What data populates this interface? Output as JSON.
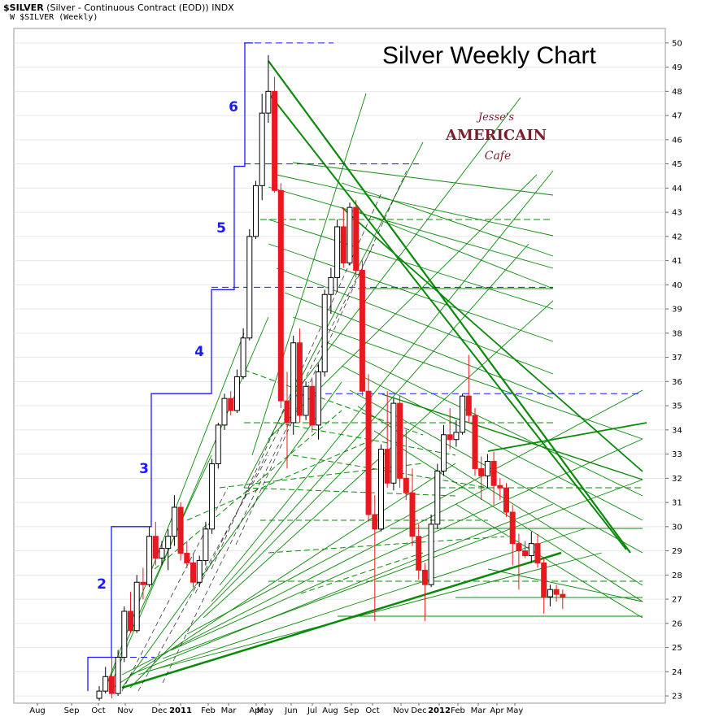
{
  "header": {
    "symbol": "$SILVER",
    "description": "(Silver - Continuous Contract (EOD))",
    "exchange": "INDX",
    "legend_icon": "W",
    "legend_label": "$SILVER (Weekly)"
  },
  "chart_data": {
    "type": "candlestick",
    "title": "Silver Weekly Chart",
    "logo_text": [
      "Jesse's",
      "AMERICAIN",
      "Cafe"
    ],
    "ylim": [
      22.7,
      50.6
    ],
    "y_ticks": [
      23,
      24,
      25,
      26,
      27,
      28,
      29,
      30,
      31,
      32,
      33,
      34,
      35,
      36,
      37,
      38,
      39,
      40,
      41,
      42,
      43,
      44,
      45,
      46,
      47,
      48,
      49,
      50
    ],
    "x_labels": [
      "Aug",
      "Sep",
      "Oct",
      "Nov",
      "Dec",
      "2011",
      "Feb",
      "Mar",
      "Apr",
      "May",
      "Jun",
      "Jul",
      "Aug",
      "Sep",
      "Oct",
      "Nov",
      "Dec",
      "2012",
      "Feb",
      "Mar",
      "Apr",
      "May"
    ],
    "wave_labels": [
      "2",
      "3",
      "4",
      "5",
      "6"
    ],
    "colors": {
      "up": "#ffffff",
      "down": "#e8191e",
      "outline": "#000000",
      "trend": "#0a8a0a",
      "wave": "#1a1aff"
    },
    "candles": [
      [
        22.9,
        23.4,
        22.8,
        23.2
      ],
      [
        23.2,
        24.2,
        23.1,
        23.8
      ],
      [
        23.8,
        24.6,
        22.9,
        23.1
      ],
      [
        23.1,
        24.9,
        23.0,
        24.6
      ],
      [
        24.6,
        26.7,
        24.4,
        26.5
      ],
      [
        26.5,
        27.3,
        25.6,
        25.7
      ],
      [
        25.7,
        28.0,
        25.6,
        27.7
      ],
      [
        27.7,
        28.3,
        27.0,
        27.6
      ],
      [
        27.6,
        30.0,
        27.5,
        29.6
      ],
      [
        29.6,
        30.2,
        28.4,
        28.7
      ],
      [
        28.7,
        29.4,
        28.4,
        29.1
      ],
      [
        29.1,
        29.9,
        28.2,
        29.6
      ],
      [
        29.6,
        31.3,
        29.2,
        30.8
      ],
      [
        30.8,
        31.0,
        28.6,
        28.9
      ],
      [
        28.9,
        29.4,
        28.3,
        28.5
      ],
      [
        28.5,
        28.9,
        27.5,
        27.7
      ],
      [
        27.7,
        28.8,
        27.5,
        28.6
      ],
      [
        28.6,
        30.2,
        28.4,
        29.9
      ],
      [
        29.9,
        32.8,
        29.7,
        32.6
      ],
      [
        32.6,
        34.3,
        32.4,
        34.2
      ],
      [
        34.2,
        35.5,
        34.0,
        35.3
      ],
      [
        35.3,
        35.6,
        34.6,
        34.8
      ],
      [
        34.8,
        36.5,
        34.7,
        36.2
      ],
      [
        36.2,
        38.2,
        36.1,
        37.8
      ],
      [
        37.8,
        42.3,
        37.7,
        42.0
      ],
      [
        42.0,
        44.3,
        41.9,
        44.1
      ],
      [
        44.1,
        47.9,
        43.5,
        47.1
      ],
      [
        47.1,
        49.5,
        46.7,
        48.0
      ],
      [
        48.0,
        48.6,
        43.8,
        43.9
      ],
      [
        43.9,
        44.2,
        34.9,
        35.2
      ],
      [
        35.2,
        36.4,
        32.4,
        34.3
      ],
      [
        34.3,
        37.9,
        33.8,
        37.6
      ],
      [
        37.6,
        38.2,
        34.3,
        34.6
      ],
      [
        34.6,
        36.0,
        34.4,
        35.8
      ],
      [
        35.8,
        36.1,
        33.9,
        34.2
      ],
      [
        34.2,
        36.7,
        33.6,
        36.4
      ],
      [
        36.4,
        39.8,
        36.2,
        39.6
      ],
      [
        39.6,
        40.7,
        38.8,
        40.3
      ],
      [
        40.3,
        42.7,
        39.7,
        42.4
      ],
      [
        42.4,
        43.2,
        40.7,
        40.9
      ],
      [
        40.9,
        43.4,
        40.8,
        43.2
      ],
      [
        43.2,
        43.5,
        40.3,
        40.6
      ],
      [
        40.6,
        41.0,
        35.4,
        35.6
      ],
      [
        35.6,
        36.3,
        30.2,
        30.5
      ],
      [
        30.5,
        31.3,
        26.1,
        29.9
      ],
      [
        29.9,
        33.4,
        29.8,
        33.2
      ],
      [
        33.2,
        35.6,
        31.6,
        31.8
      ],
      [
        31.8,
        35.3,
        31.5,
        35.1
      ],
      [
        35.1,
        35.4,
        31.6,
        32.0
      ],
      [
        32.0,
        34.0,
        31.1,
        31.4
      ],
      [
        31.4,
        32.4,
        29.2,
        29.6
      ],
      [
        29.6,
        30.1,
        27.8,
        28.2
      ],
      [
        28.2,
        28.5,
        26.1,
        27.6
      ],
      [
        27.6,
        30.5,
        27.5,
        30.1
      ],
      [
        30.1,
        32.6,
        29.9,
        32.3
      ],
      [
        32.3,
        34.2,
        32.1,
        33.8
      ],
      [
        33.8,
        34.9,
        33.2,
        33.6
      ],
      [
        33.6,
        34.4,
        33.3,
        33.9
      ],
      [
        33.9,
        35.5,
        33.8,
        35.4
      ],
      [
        35.4,
        37.1,
        34.3,
        34.6
      ],
      [
        34.6,
        34.9,
        32.1,
        32.4
      ],
      [
        32.4,
        32.9,
        31.1,
        32.1
      ],
      [
        32.1,
        33.0,
        31.6,
        32.7
      ],
      [
        32.7,
        33.1,
        30.9,
        31.7
      ],
      [
        31.7,
        32.0,
        31.1,
        31.6
      ],
      [
        31.6,
        31.8,
        30.4,
        30.6
      ],
      [
        30.6,
        30.9,
        28.4,
        29.3
      ],
      [
        29.3,
        29.7,
        27.4,
        29.0
      ],
      [
        29.0,
        29.4,
        28.7,
        28.8
      ],
      [
        28.8,
        29.8,
        28.5,
        29.3
      ],
      [
        29.3,
        29.7,
        28.3,
        28.5
      ],
      [
        28.5,
        28.7,
        26.4,
        27.1
      ],
      [
        27.1,
        27.6,
        26.7,
        27.4
      ],
      [
        27.4,
        27.6,
        26.9,
        27.2
      ],
      [
        27.2,
        27.4,
        26.6,
        27.1
      ]
    ],
    "stairs": [
      [
        24.6,
        28.0
      ],
      [
        30.0,
        31.8
      ],
      [
        35.5,
        37.5
      ],
      [
        39.8,
        41.8
      ],
      [
        44.9,
        46.5
      ],
      [
        50.0,
        51.0
      ]
    ]
  }
}
